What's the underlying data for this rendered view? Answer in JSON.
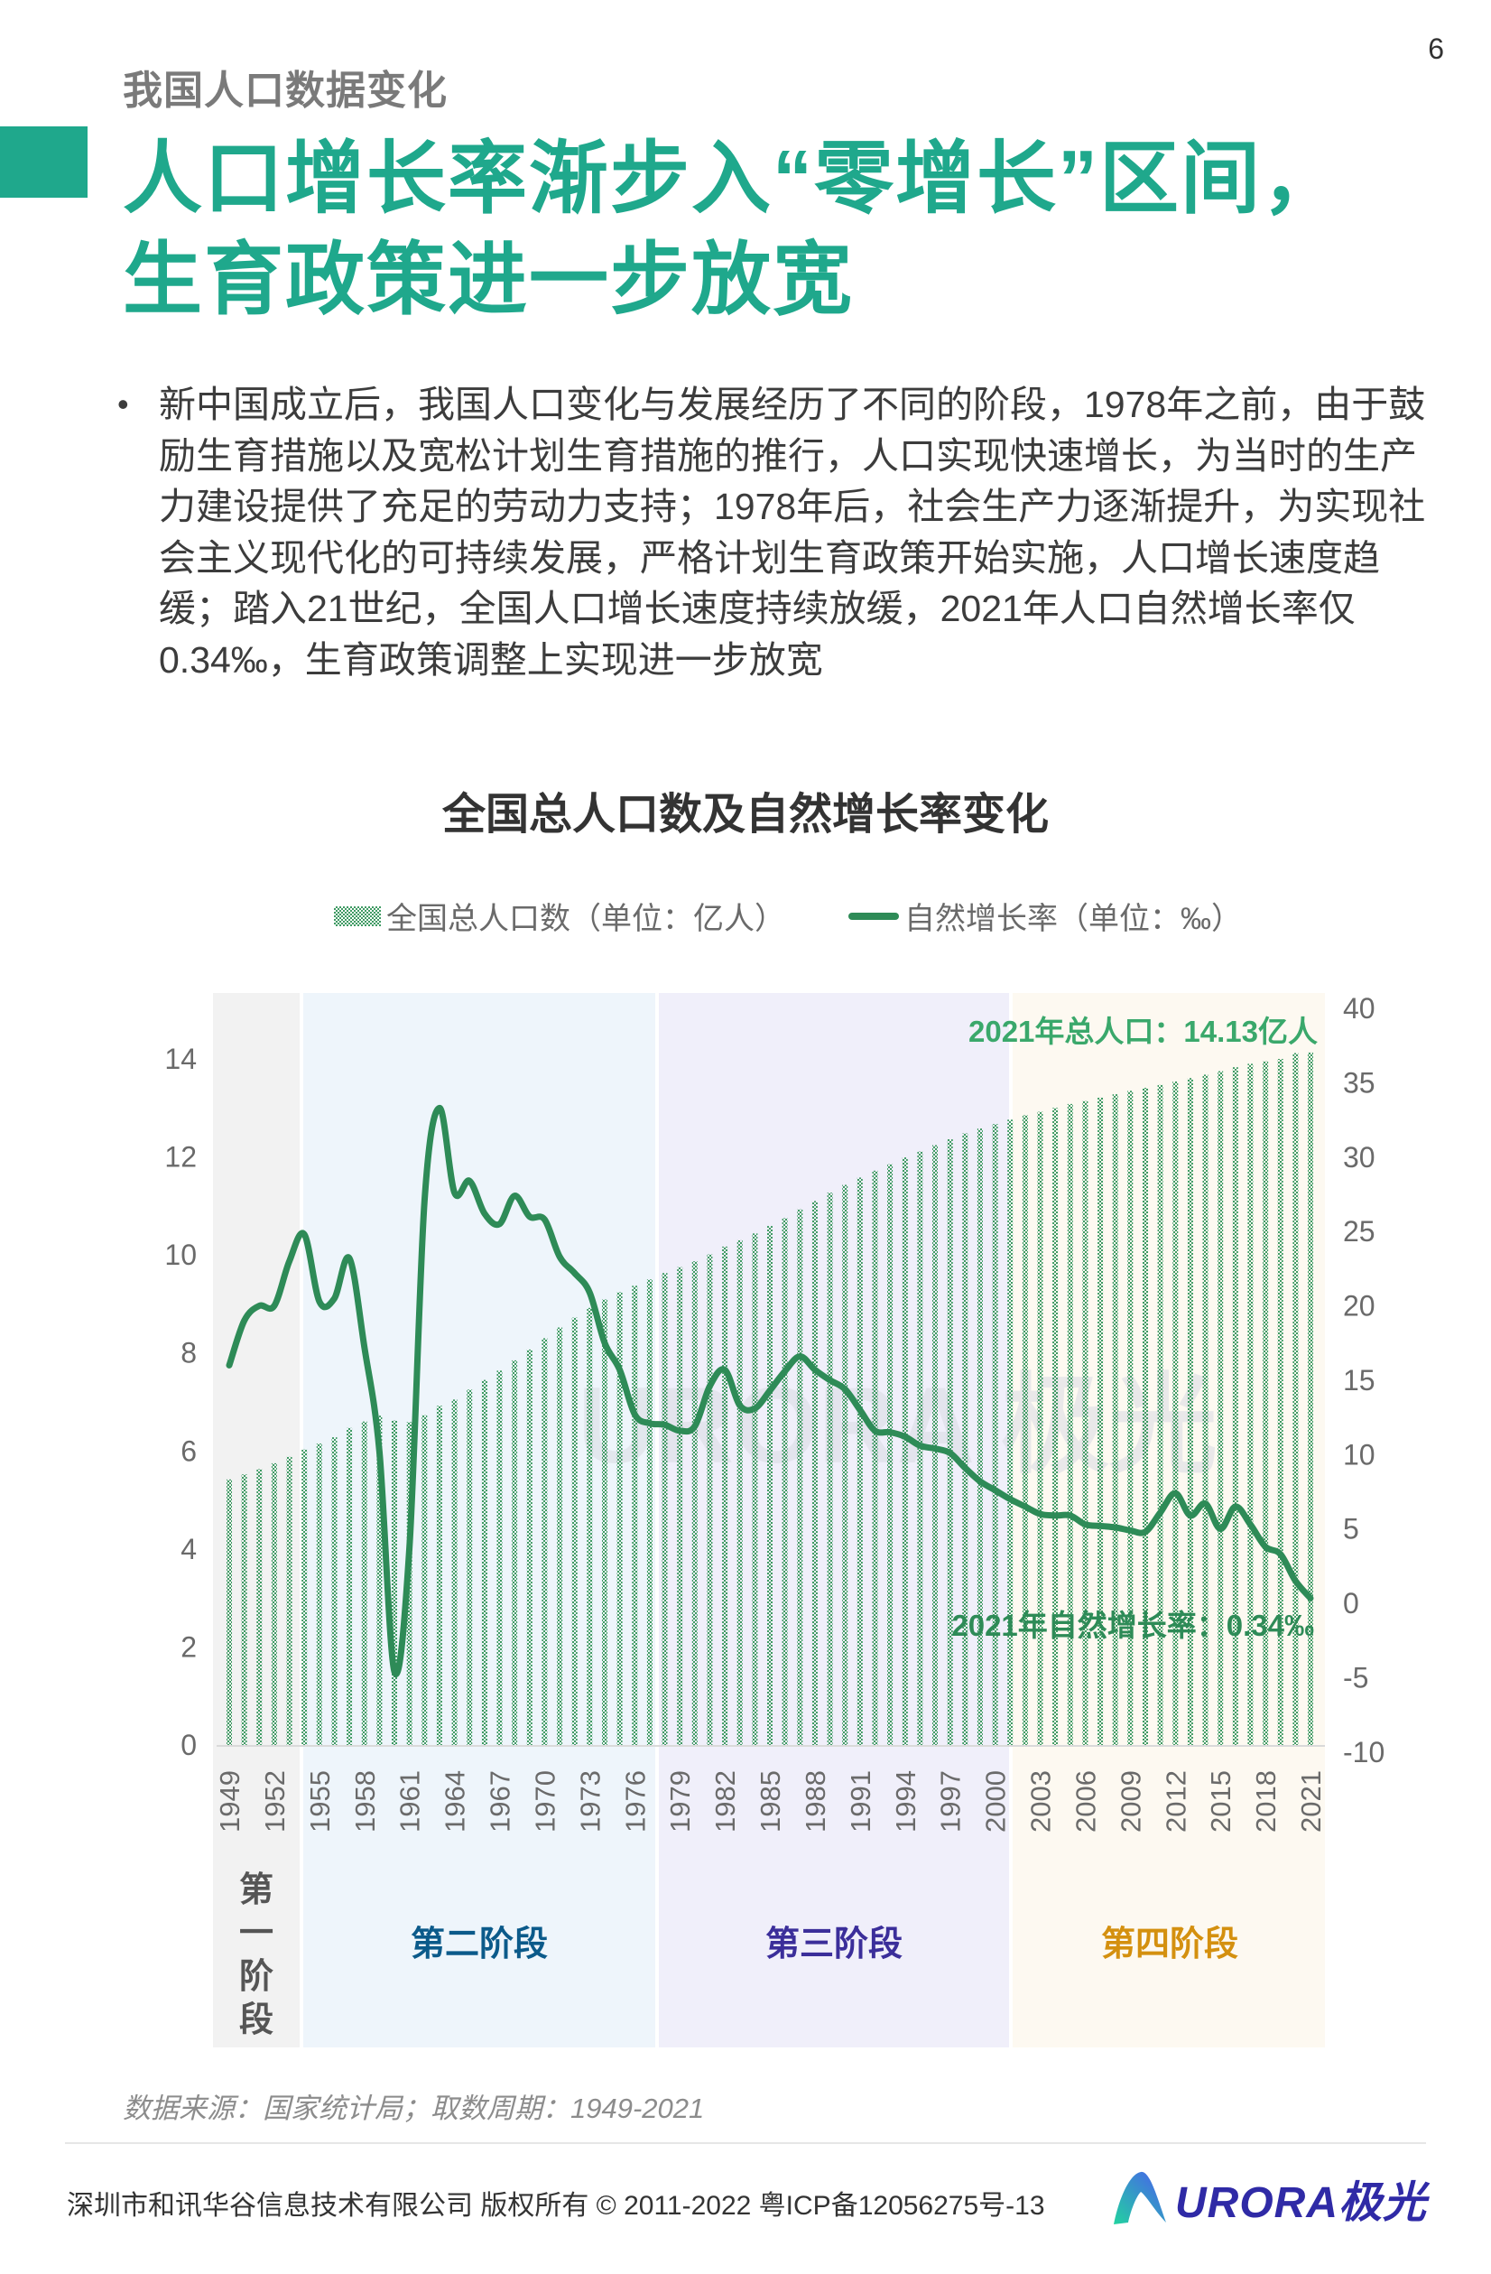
{
  "page": {
    "number": "6",
    "section_title": "我国人口数据变化",
    "main_title_line1": "人口增长率渐步入“零增长”区间，",
    "main_title_line2": "生育政策进一步放宽",
    "bullet_marker": "•",
    "bullet_text": "新中国成立后，我国人口变化与发展经历了不同的阶段，1978年之前，由于鼓励生育措施以及宽松计划生育措施的推行，人口实现快速增长，为当时的生产力建设提供了充足的劳动力支持；1978年后，社会生产力逐渐提升，为实现社会主义现代化的可持续发展，严格计划生育政策开始实施，人口增长速度趋缓；踏入21世纪，全国人口增长速度持续放缓，2021年人口自然增长率仅0.34‰，生育政策调整上实现进一步放宽",
    "source": "数据来源：国家统计局；取数周期：1949-2021",
    "footer": "深圳市和讯华谷信息技术有限公司 版权所有 © 2011-2022 粤ICP备12056275号-13",
    "logo_text": "URORA极光",
    "watermark": "URORA 极光"
  },
  "colors": {
    "brand_teal": "#1fa88c",
    "line_green": "#2e8b57",
    "bar_green": "#3f9a63",
    "annotation_green": "#3aa86b",
    "stage1_bg": "#f2f2f2",
    "stage2_bg": "#eef5fb",
    "stage3_bg": "#f0effa",
    "stage4_bg": "#fdf9f1",
    "stage1_text": "#555555",
    "stage2_text": "#0b5a8a",
    "stage3_text": "#3b2e9a",
    "stage4_text": "#d4900f",
    "logo_blue": "#2f2aa6"
  },
  "chart_data": {
    "type": "bar+line",
    "title": "全国总人口数及自然增长率变化",
    "xlabel": "",
    "ylabel_left": "全国总人口数（单位：亿人）",
    "ylabel_right": "自然增长率（单位：‰）",
    "ylim_left": [
      0,
      14
    ],
    "yticks_left": [
      0,
      2,
      4,
      6,
      8,
      10,
      12,
      14
    ],
    "ylim_right": [
      -10,
      40
    ],
    "yticks_right": [
      -10,
      -5,
      0,
      5,
      10,
      15,
      20,
      25,
      30,
      35,
      40
    ],
    "x_tick_labels": [
      "1949",
      "1952",
      "1955",
      "1958",
      "1961",
      "1964",
      "1967",
      "1970",
      "1973",
      "1976",
      "1979",
      "1982",
      "1985",
      "1988",
      "1991",
      "1994",
      "1997",
      "2000",
      "2003",
      "2006",
      "2009",
      "2012",
      "2015",
      "2018",
      "2021"
    ],
    "legend": [
      "全国总人口数（单位：亿人）",
      "自然增长率（单位：‰）"
    ],
    "legend_position": "top",
    "grid": false,
    "x": [
      1949,
      1950,
      1951,
      1952,
      1953,
      1954,
      1955,
      1956,
      1957,
      1958,
      1959,
      1960,
      1961,
      1962,
      1963,
      1964,
      1965,
      1966,
      1967,
      1968,
      1969,
      1970,
      1971,
      1972,
      1973,
      1974,
      1975,
      1976,
      1977,
      1978,
      1979,
      1980,
      1981,
      1982,
      1983,
      1984,
      1985,
      1986,
      1987,
      1988,
      1989,
      1990,
      1991,
      1992,
      1993,
      1994,
      1995,
      1996,
      1997,
      1998,
      1999,
      2000,
      2001,
      2002,
      2003,
      2004,
      2005,
      2006,
      2007,
      2008,
      2009,
      2010,
      2011,
      2012,
      2013,
      2014,
      2015,
      2016,
      2017,
      2018,
      2019,
      2020,
      2021
    ],
    "series": [
      {
        "name": "全国总人口数（单位：亿人）",
        "type": "bar",
        "axis": "left",
        "values": [
          5.42,
          5.52,
          5.63,
          5.75,
          5.88,
          6.03,
          6.15,
          6.28,
          6.47,
          6.6,
          6.72,
          6.62,
          6.59,
          6.73,
          6.92,
          7.05,
          7.25,
          7.45,
          7.64,
          7.85,
          8.07,
          8.3,
          8.52,
          8.72,
          8.92,
          9.09,
          9.24,
          9.37,
          9.5,
          9.63,
          9.75,
          9.87,
          10.01,
          10.17,
          10.3,
          10.44,
          10.59,
          10.75,
          10.93,
          11.1,
          11.27,
          11.43,
          11.58,
          11.72,
          11.85,
          11.99,
          12.11,
          12.24,
          12.36,
          12.48,
          12.58,
          12.67,
          12.76,
          12.85,
          12.92,
          13.0,
          13.08,
          13.14,
          13.21,
          13.28,
          13.35,
          13.41,
          13.47,
          13.54,
          13.61,
          13.68,
          13.75,
          13.83,
          13.9,
          13.95,
          14.0,
          14.12,
          14.13
        ]
      },
      {
        "name": "自然增长率（单位：‰）",
        "type": "line",
        "axis": "right",
        "values": [
          16.0,
          19.0,
          20.0,
          20.0,
          23.0,
          24.8,
          20.3,
          20.5,
          23.2,
          17.2,
          10.2,
          -4.6,
          3.8,
          27.0,
          33.3,
          27.6,
          28.4,
          26.2,
          25.5,
          27.4,
          26.0,
          25.8,
          23.3,
          22.2,
          20.9,
          17.5,
          15.7,
          12.7,
          12.1,
          12.0,
          11.6,
          11.9,
          14.6,
          15.7,
          13.3,
          13.1,
          14.3,
          15.6,
          16.6,
          15.7,
          15.0,
          14.4,
          13.0,
          11.6,
          11.5,
          11.2,
          10.6,
          10.4,
          10.1,
          9.1,
          8.2,
          7.6,
          7.0,
          6.5,
          6.0,
          5.9,
          5.9,
          5.3,
          5.2,
          5.1,
          4.9,
          4.8,
          6.1,
          7.4,
          5.9,
          6.7,
          5.0,
          6.5,
          5.3,
          3.8,
          3.3,
          1.5,
          0.34
        ]
      }
    ],
    "stages": [
      {
        "label": "第一阶段",
        "from": 1949,
        "to": 1953
      },
      {
        "label": "第二阶段",
        "from": 1954,
        "to": 1977
      },
      {
        "label": "第三阶段",
        "from": 1978,
        "to": 2001
      },
      {
        "label": "第四阶段",
        "from": 2002,
        "to": 2021
      }
    ],
    "annotations": [
      {
        "text": "2021年总人口：14.13亿人",
        "x": 2021,
        "series": "population"
      },
      {
        "text": "2021年自然增长率：0.34‰",
        "x": 2021,
        "series": "growth_rate"
      }
    ]
  }
}
